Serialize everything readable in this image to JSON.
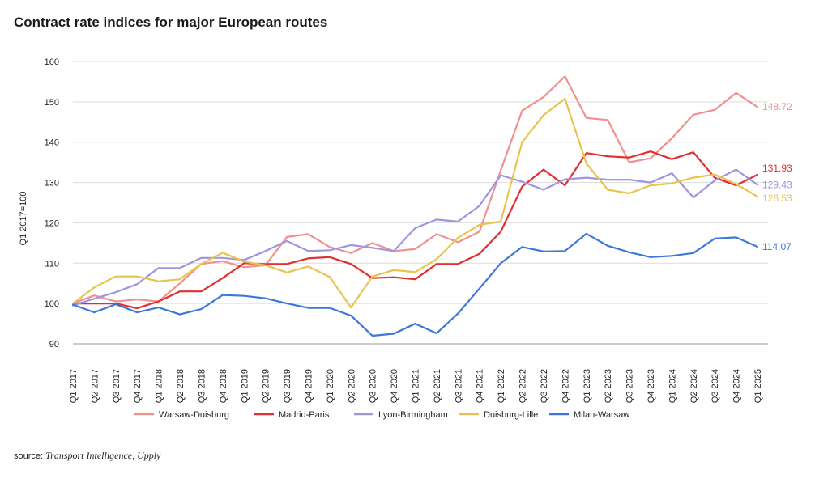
{
  "title": "Contract rate indices for major European routes",
  "source_label": "source:",
  "source_name": "Transport Intelligence, Upply",
  "chart_data": {
    "type": "line",
    "title": "Contract rate indices for major European routes",
    "ylabel": "Q1 2017=100",
    "xlabel": "",
    "ylim": [
      90,
      160
    ],
    "yticks": [
      90,
      100,
      110,
      120,
      130,
      140,
      150,
      160
    ],
    "grid": true,
    "legend": "bottom",
    "categories": [
      "Q1 2017",
      "Q2 2017",
      "Q3 2017",
      "Q4 2017",
      "Q1 2018",
      "Q2 2018",
      "Q3 2018",
      "Q4 2018",
      "Q1 2019",
      "Q2 2019",
      "Q3 2019",
      "Q4 2019",
      "Q1 2020",
      "Q2 2020",
      "Q3 2020",
      "Q4 2020",
      "Q1 2021",
      "Q2 2021",
      "Q3 2021",
      "Q4 2021",
      "Q1 2022",
      "Q2 2022",
      "Q3 2022",
      "Q4 2022",
      "Q1 2023",
      "Q2 2023",
      "Q3 2023",
      "Q4 2023",
      "Q1 2024",
      "Q2 2024",
      "Q3 2024",
      "Q4 2024",
      "Q1 2025"
    ],
    "series": [
      {
        "name": "Warsaw-Duisburg",
        "color": "#f0908f",
        "end_label": "148.72",
        "values": [
          100,
          102,
          100.5,
          101,
          100.5,
          105,
          109.8,
          110.5,
          109,
          109.5,
          116.5,
          117.2,
          114,
          112.5,
          115,
          113,
          113.5,
          117.2,
          115.2,
          117.8,
          133,
          147.8,
          151.2,
          156.3,
          146,
          145.5,
          135,
          136,
          141,
          146.8,
          148,
          152.2,
          148.72
        ]
      },
      {
        "name": "Madrid-Paris",
        "color": "#e03030",
        "end_label": "131.93",
        "values": [
          100,
          100,
          100,
          98.8,
          100.5,
          103,
          103,
          106.3,
          110,
          109.8,
          109.8,
          111.2,
          111.5,
          109.8,
          106.3,
          106.5,
          106,
          109.8,
          109.8,
          112.3,
          117.8,
          129,
          133.2,
          129.3,
          137.3,
          136.5,
          136.2,
          137.7,
          135.8,
          137.5,
          131.2,
          129.3,
          131.93
        ]
      },
      {
        "name": "Lyon-Birmingham",
        "color": "#9f95e0",
        "end_label": "129.43",
        "values": [
          99.5,
          101.2,
          102.8,
          104.8,
          108.8,
          108.8,
          111.3,
          111.3,
          110.8,
          113,
          115.5,
          113,
          113.2,
          114.5,
          113.8,
          113,
          118.7,
          120.8,
          120.3,
          124.2,
          131.8,
          130.2,
          128.2,
          130.8,
          131.2,
          130.7,
          130.7,
          130,
          132.3,
          126.3,
          130.5,
          133.2,
          129.43
        ]
      },
      {
        "name": "Duisburg-Lille",
        "color": "#e8c44f",
        "end_label": "126.53",
        "values": [
          100,
          104,
          106.7,
          106.7,
          105.5,
          106,
          109.8,
          112.6,
          110.4,
          109.5,
          107.7,
          109.2,
          106.6,
          99,
          106.7,
          108.3,
          107.8,
          111,
          116.3,
          119.5,
          120.3,
          140,
          146.7,
          150.8,
          134.7,
          128.2,
          127.3,
          129.3,
          129.8,
          131.2,
          132,
          129.6,
          126.53
        ]
      },
      {
        "name": "Milan-Warsaw",
        "color": "#3c78d8",
        "end_label": "114.07",
        "values": [
          99.7,
          97.8,
          99.8,
          97.8,
          99,
          97.3,
          98.6,
          102.1,
          101.9,
          101.3,
          100,
          98.9,
          98.9,
          97,
          92,
          92.5,
          95,
          92.6,
          97.5,
          103.7,
          110,
          114,
          112.9,
          113,
          117.3,
          114.3,
          112.7,
          111.5,
          111.8,
          112.5,
          116.1,
          116.4,
          114.07
        ]
      }
    ]
  }
}
